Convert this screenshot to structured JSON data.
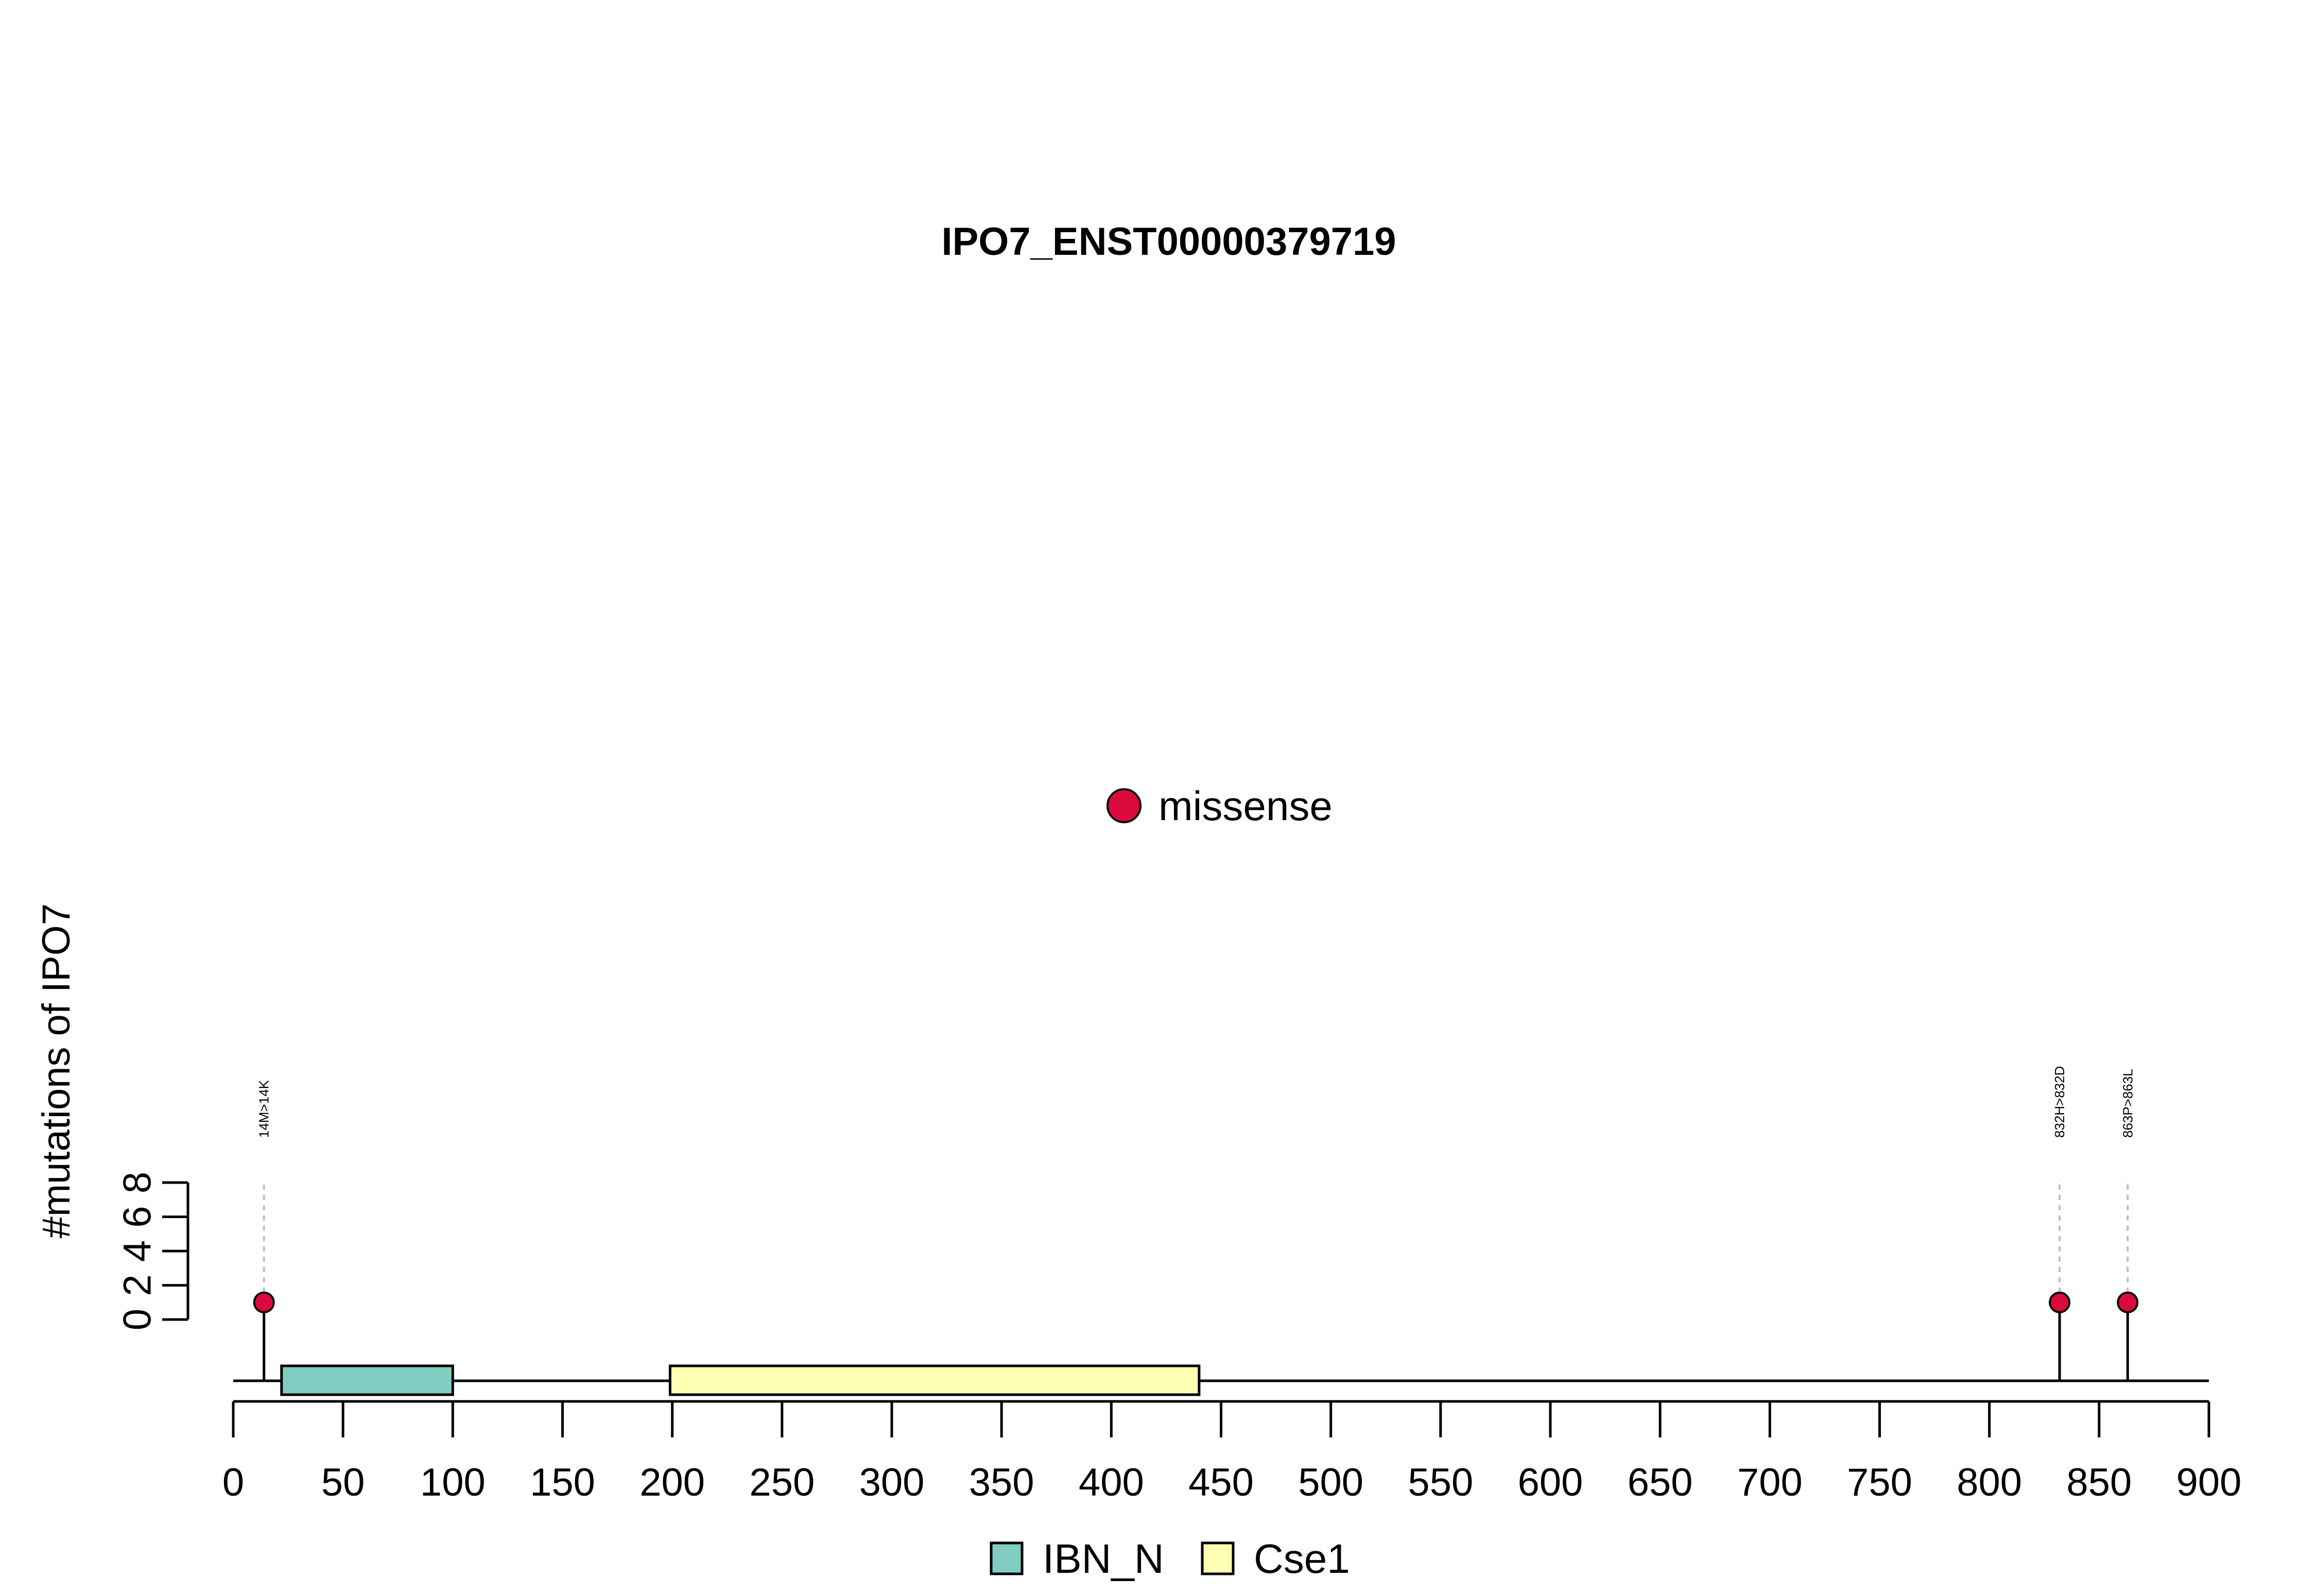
{
  "chart_data": {
    "type": "lollipop",
    "title": "IPO7_ENST00000379719",
    "ylabel": "#mutations of IPO7",
    "xlim": [
      0,
      900
    ],
    "x_ticks": [
      0,
      50,
      100,
      150,
      200,
      250,
      300,
      350,
      400,
      450,
      500,
      550,
      600,
      650,
      700,
      750,
      800,
      850,
      900
    ],
    "ylim": [
      0,
      8
    ],
    "y_ticks": [
      0,
      2,
      4,
      6,
      8
    ],
    "mutation_legend": [
      {
        "label": "missense",
        "color": "#DC0A3C"
      }
    ],
    "mutations": [
      {
        "position": 14,
        "label": "14M>14K",
        "count": 1,
        "type": "missense"
      },
      {
        "position": 832,
        "label": "832H>832D",
        "count": 1,
        "type": "missense"
      },
      {
        "position": 863,
        "label": "863P>863L",
        "count": 1,
        "type": "missense"
      }
    ],
    "domains": [
      {
        "name": "IBN_N",
        "start": 22,
        "end": 100,
        "color": "#80CDC1"
      },
      {
        "name": "Cse1",
        "start": 199,
        "end": 440,
        "color": "#FFFFB3"
      }
    ]
  }
}
